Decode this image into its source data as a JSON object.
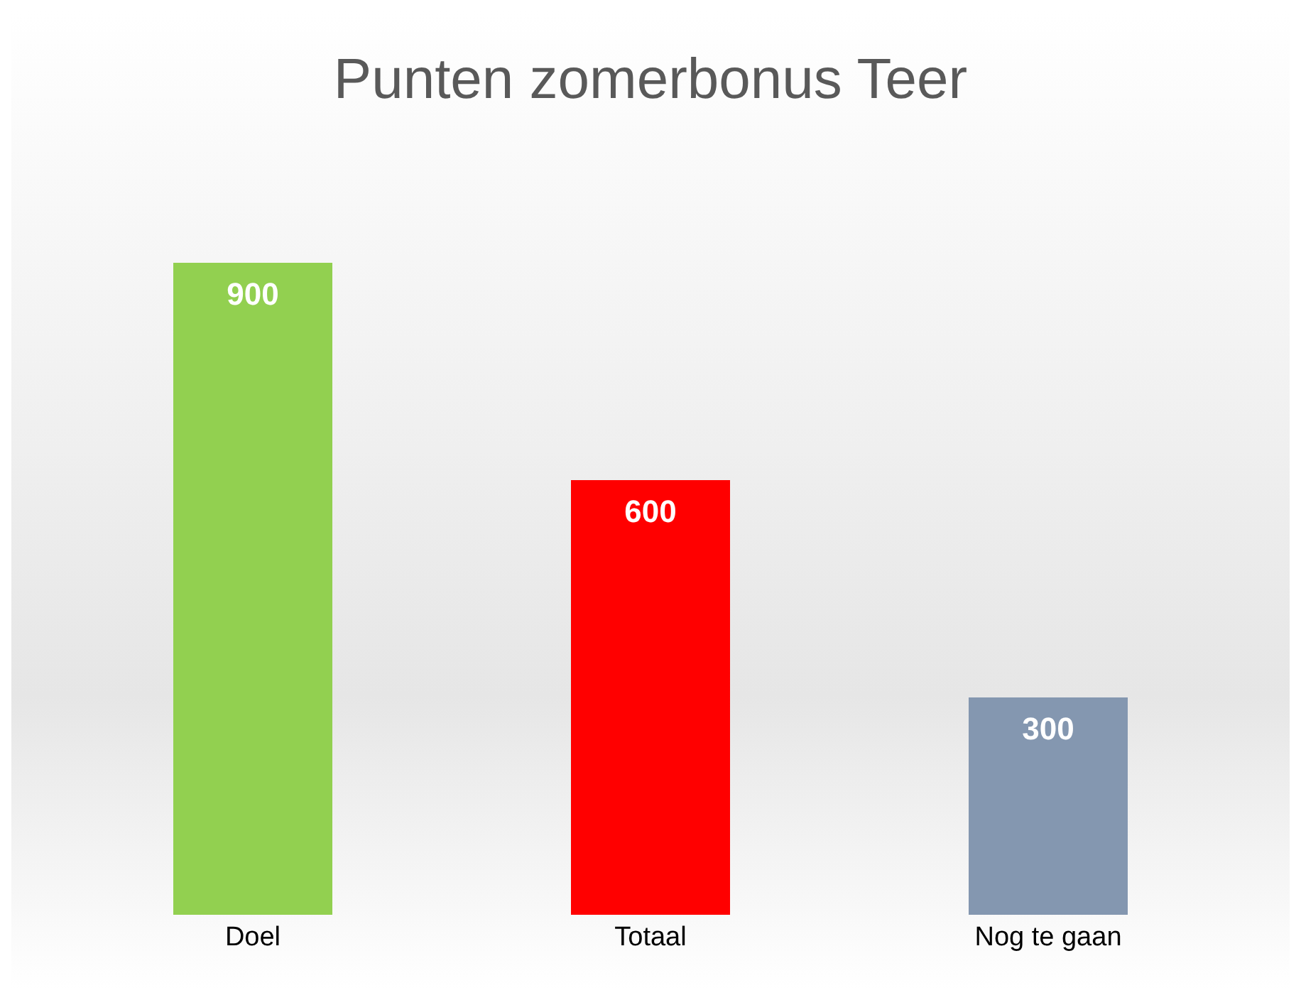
{
  "chart_data": {
    "type": "bar",
    "title": "Punten zomerbonus Teer",
    "categories": [
      "Doel",
      "Totaal",
      "Nog te gaan"
    ],
    "values": [
      900,
      600,
      300
    ],
    "colors": [
      "#92d050",
      "#ff0000",
      "#8497b0"
    ],
    "data_labels": true
  }
}
